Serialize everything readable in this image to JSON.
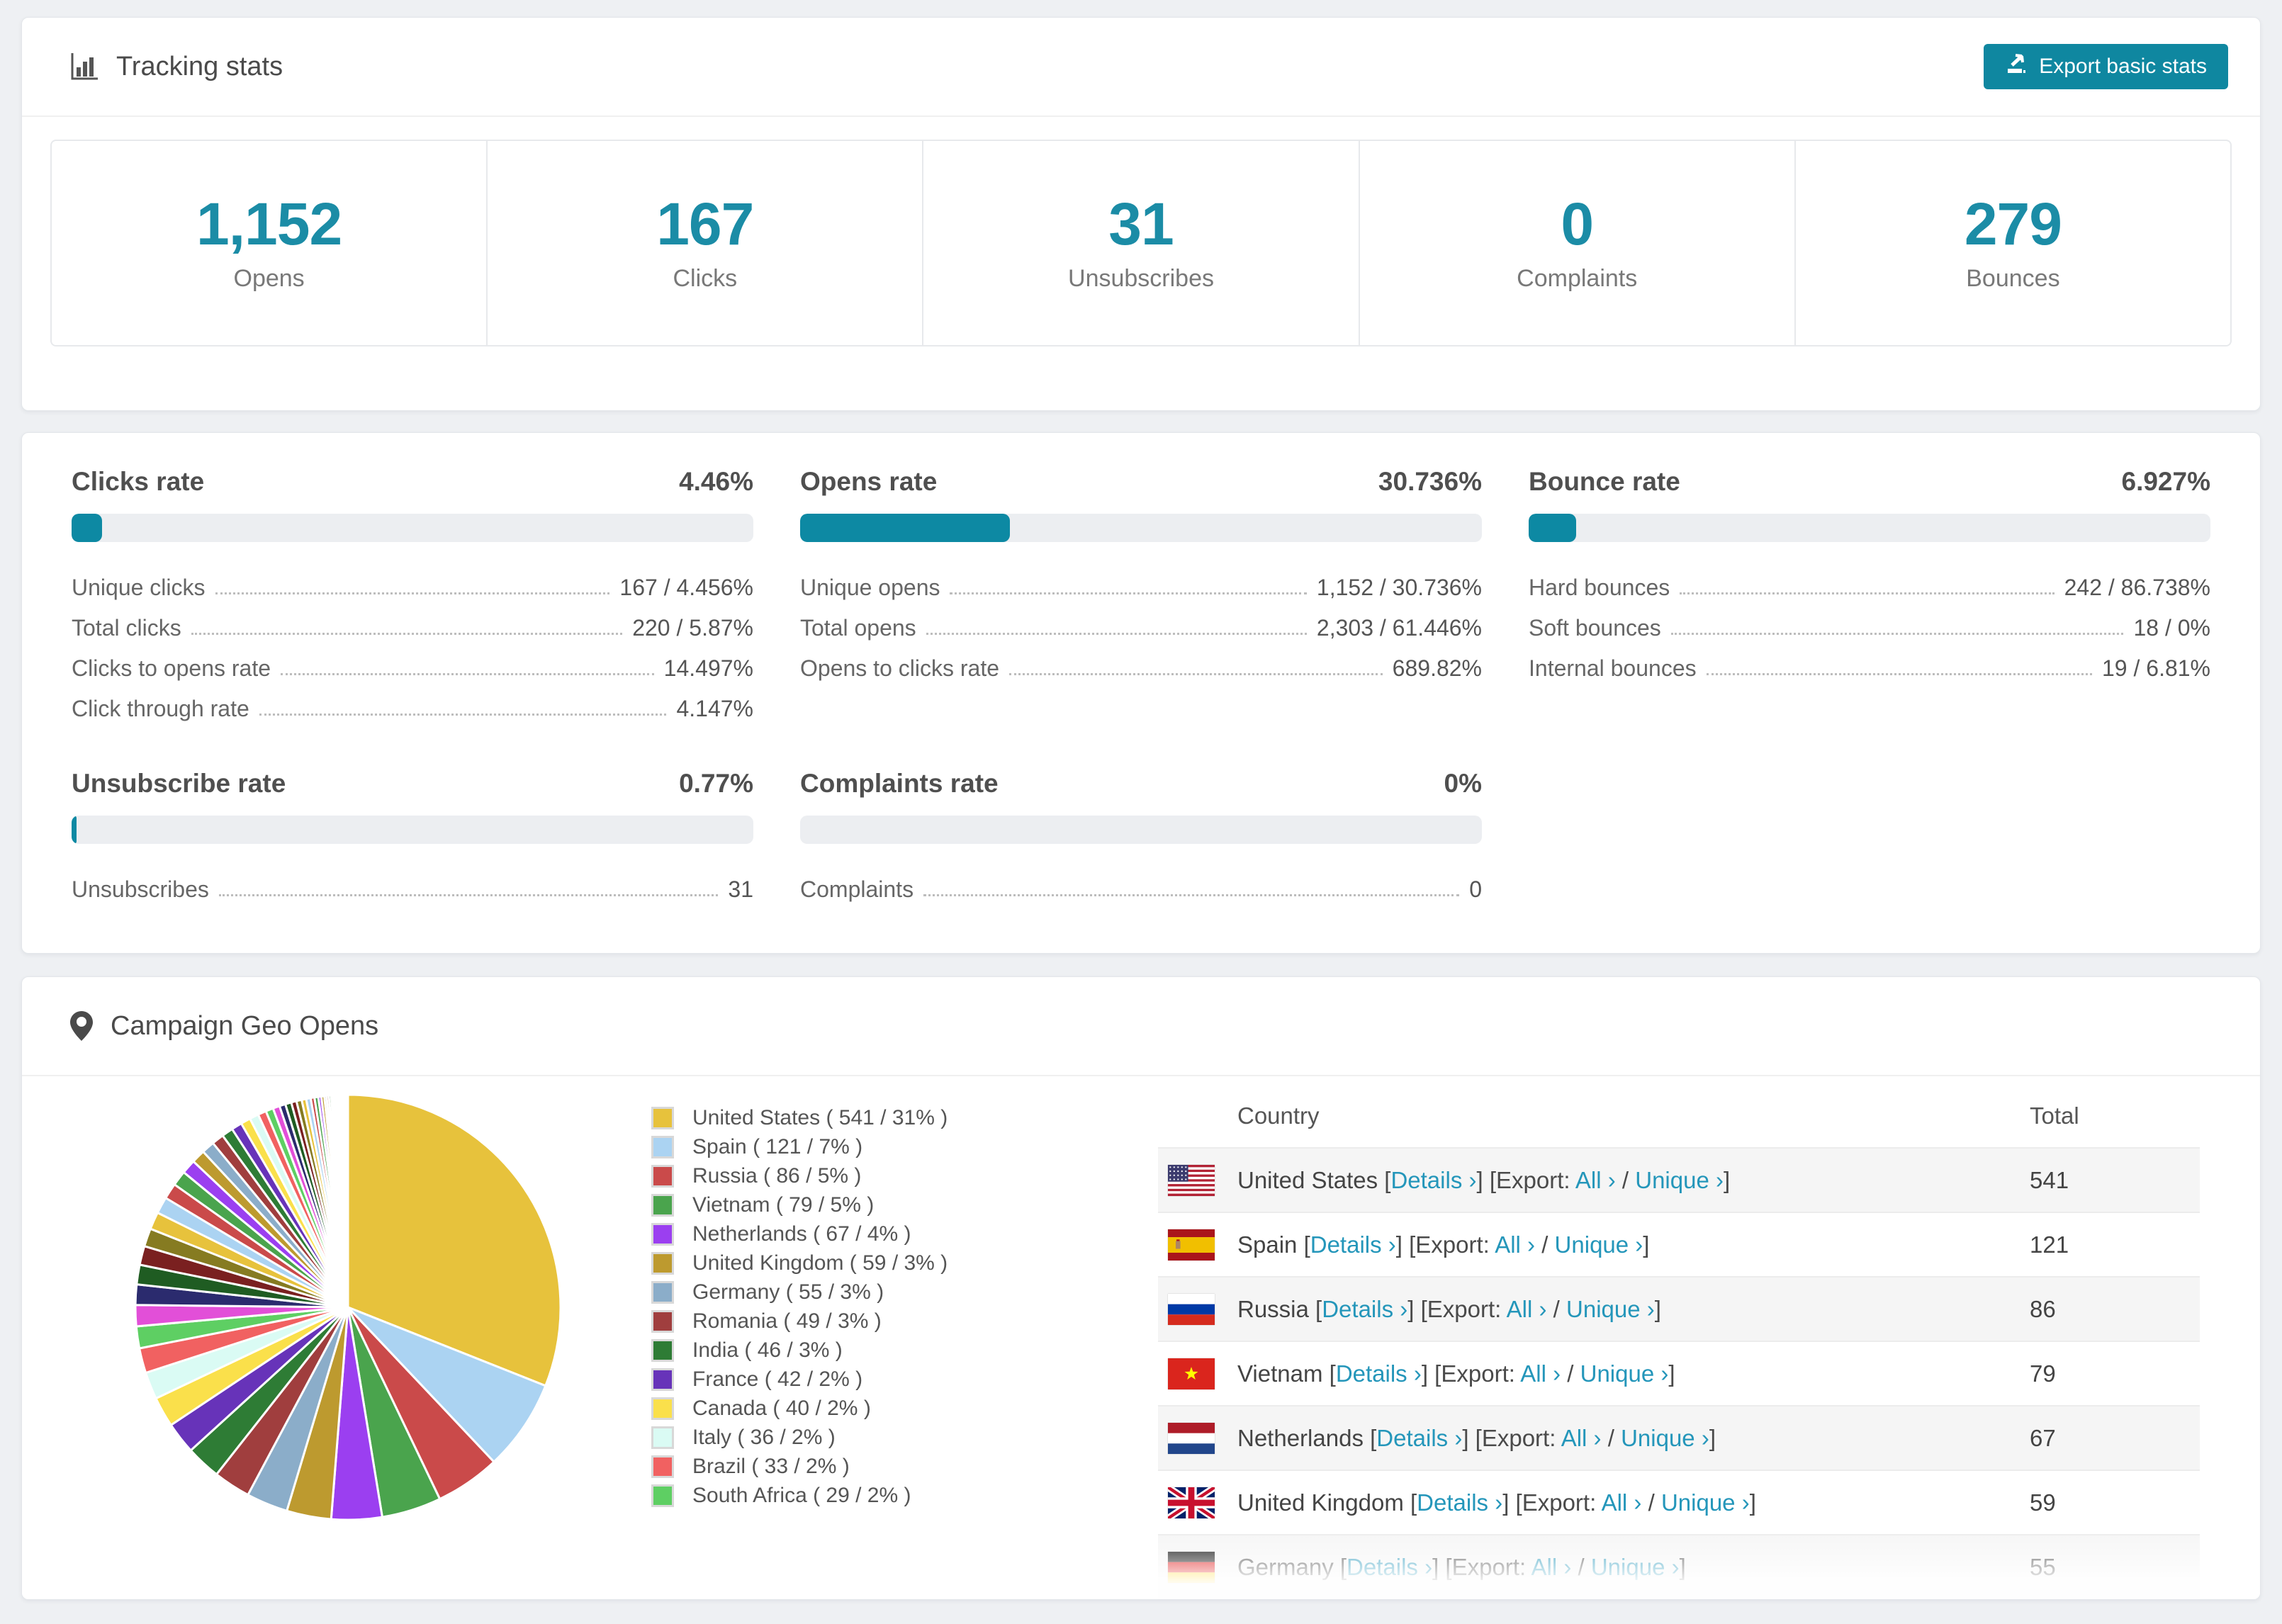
{
  "tracking": {
    "title": "Tracking stats",
    "export_label": "Export basic stats",
    "accent_color": "#1b8ca6",
    "button_color": "#0f87a0",
    "stats": [
      {
        "value": "1,152",
        "label": "Opens"
      },
      {
        "value": "167",
        "label": "Clicks"
      },
      {
        "value": "31",
        "label": "Unsubscribes"
      },
      {
        "value": "0",
        "label": "Complaints"
      },
      {
        "value": "279",
        "label": "Bounces"
      }
    ]
  },
  "rates": [
    {
      "title": "Clicks rate",
      "value": "4.46%",
      "percent": 4.46,
      "rows": [
        {
          "label": "Unique clicks",
          "value": "167 / 4.456%"
        },
        {
          "label": "Total clicks",
          "value": "220 / 5.87%"
        },
        {
          "label": "Clicks to opens rate",
          "value": "14.497%"
        },
        {
          "label": "Click through rate",
          "value": "4.147%"
        }
      ]
    },
    {
      "title": "Opens rate",
      "value": "30.736%",
      "percent": 30.736,
      "rows": [
        {
          "label": "Unique opens",
          "value": "1,152 / 30.736%"
        },
        {
          "label": "Total opens",
          "value": "2,303 / 61.446%"
        },
        {
          "label": "Opens to clicks rate",
          "value": "689.82%"
        }
      ]
    },
    {
      "title": "Bounce rate",
      "value": "6.927%",
      "percent": 6.927,
      "rows": [
        {
          "label": "Hard bounces",
          "value": "242 / 86.738%"
        },
        {
          "label": "Soft bounces",
          "value": "18 / 0%"
        },
        {
          "label": "Internal bounces",
          "value": "19 / 6.81%"
        }
      ]
    },
    {
      "title": "Unsubscribe rate",
      "value": "0.77%",
      "percent": 0.77,
      "rows": [
        {
          "label": "Unsubscribes",
          "value": "31"
        }
      ]
    },
    {
      "title": "Complaints rate",
      "value": "0%",
      "percent": 0,
      "rows": [
        {
          "label": "Complaints",
          "value": "0"
        }
      ]
    }
  ],
  "geo": {
    "title": "Campaign Geo Opens",
    "table": {
      "header_country": "Country",
      "header_total": "Total",
      "details_label": "Details",
      "export_label": "Export:",
      "all_label": "All",
      "unique_label": "Unique",
      "chevron": "›",
      "rows": [
        {
          "country": "United States",
          "total": "541",
          "flag": "us"
        },
        {
          "country": "Spain",
          "total": "121",
          "flag": "es"
        },
        {
          "country": "Russia",
          "total": "86",
          "flag": "ru"
        },
        {
          "country": "Vietnam",
          "total": "79",
          "flag": "vn"
        },
        {
          "country": "Netherlands",
          "total": "67",
          "flag": "nl"
        },
        {
          "country": "United Kingdom",
          "total": "59",
          "flag": "gb"
        },
        {
          "country": "Germany",
          "total": "55",
          "flag": "de"
        }
      ]
    }
  },
  "chart_data": {
    "type": "pie",
    "title": "Campaign Geo Opens",
    "legend_position": "right",
    "start_angle_deg": 0,
    "direction": "clockwise",
    "labels": [
      "United States",
      "Spain",
      "Russia",
      "Vietnam",
      "Netherlands",
      "United Kingdom",
      "Germany",
      "Romania",
      "India",
      "France",
      "Canada",
      "Italy",
      "Brazil",
      "South Africa"
    ],
    "values": [
      541,
      121,
      86,
      79,
      67,
      59,
      55,
      49,
      46,
      42,
      40,
      36,
      33,
      29
    ],
    "percents": [
      31,
      7,
      5,
      5,
      4,
      3,
      3,
      3,
      3,
      2,
      2,
      2,
      2,
      2
    ],
    "colors": [
      "#e7c23c",
      "#abd3f2",
      "#ca4a4a",
      "#4aa44d",
      "#9b3ff0",
      "#bd9a2f",
      "#8badc9",
      "#a03e3e",
      "#2e7c35",
      "#6733b9",
      "#fae04b",
      "#dafbf4",
      "#f16161",
      "#5ecf63"
    ],
    "others_colors": [
      "#e24fd8",
      "#2b2b6e",
      "#1f5c22",
      "#7a2020",
      "#867b21"
    ],
    "others_values": [
      28,
      27,
      26,
      25,
      24,
      23,
      22,
      21,
      20,
      19,
      18,
      17,
      16,
      15,
      14,
      13,
      12,
      11,
      10,
      9,
      8,
      8,
      7,
      7,
      6,
      6,
      5,
      5,
      4,
      4,
      3,
      3,
      3,
      2,
      2,
      2,
      2,
      2,
      1,
      1,
      1,
      1,
      1,
      1,
      1,
      1,
      1,
      1,
      1,
      1
    ]
  }
}
